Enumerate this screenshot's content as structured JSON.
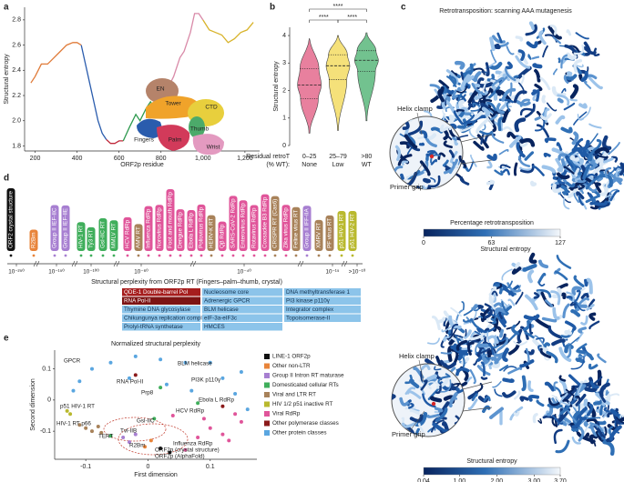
{
  "panel_letters": [
    "a",
    "b",
    "c",
    "d",
    "e"
  ],
  "chart_data": [
    {
      "type": "line",
      "xlabel": "ORF2p residue",
      "ylabel": "Structural entropy",
      "xlim": [
        150,
        1270
      ],
      "ylim": [
        1.76,
        2.9
      ],
      "xticks": [
        200,
        400,
        600,
        800,
        {
          "value": 1000,
          "label": "1,000"
        },
        {
          "value": 1200,
          "label": "1,200"
        }
      ],
      "yticks": [
        1.8,
        {
          "value": 2,
          "label": "2.0"
        },
        2.2,
        2.4,
        2.6,
        2.8
      ],
      "series": [
        {
          "color": "#e07b39",
          "x": [
            180,
            200,
            230,
            260,
            290,
            320,
            350,
            380,
            400,
            420
          ],
          "values": [
            2.3,
            2.35,
            2.45,
            2.45,
            2.5,
            2.55,
            2.6,
            2.62,
            2.62,
            2.6
          ]
        },
        {
          "color": "#2a5cad",
          "x": [
            420,
            440,
            460,
            480,
            500,
            520,
            540
          ],
          "values": [
            2.6,
            2.45,
            2.3,
            2.15,
            2.0,
            1.9,
            1.85
          ]
        },
        {
          "color": "#c0283a",
          "x": [
            540,
            560,
            580,
            600,
            620
          ],
          "values": [
            1.85,
            1.82,
            1.82,
            1.84,
            1.84
          ]
        },
        {
          "color": "#2e9a4f",
          "x": [
            620,
            650,
            680,
            700,
            730,
            750,
            770
          ],
          "values": [
            1.84,
            1.95,
            2.05,
            2.0,
            2.1,
            2.15,
            2.1
          ]
        },
        {
          "color": "#d98aa8",
          "x": [
            770,
            800,
            830,
            860,
            890,
            910,
            940,
            960,
            980,
            1000
          ],
          "values": [
            2.1,
            2.2,
            2.25,
            2.35,
            2.5,
            2.55,
            2.7,
            2.85,
            2.85,
            2.8
          ]
        },
        {
          "color": "#d8b32a",
          "x": [
            1000,
            1030,
            1060,
            1090,
            1120,
            1150,
            1180,
            1210,
            1240
          ],
          "values": [
            2.8,
            2.72,
            2.7,
            2.68,
            2.62,
            2.65,
            2.7,
            2.72,
            2.78
          ]
        }
      ],
      "schematic": [
        "EN",
        "Tower",
        "CTD",
        "Thumb",
        "Fingers",
        "Palm",
        "Wrist"
      ]
    },
    {
      "type": "violin",
      "ylabel": "Structural entropy",
      "xlabel_lines": [
        "Residual retroT",
        "(% WT):"
      ],
      "categories": [
        "0–25",
        "25–79",
        ">80"
      ],
      "category_notes": [
        "None",
        "Low",
        "WT"
      ],
      "ylim": [
        0,
        4.3
      ],
      "yticks": [
        0,
        1,
        2,
        3,
        4
      ],
      "violins": [
        {
          "color": "#e8809e",
          "min": 0.45,
          "q1": 1.7,
          "median": 2.2,
          "q3": 2.8,
          "max": 3.9
        },
        {
          "color": "#f5e17a",
          "min": 0.55,
          "q1": 2.4,
          "median": 2.9,
          "q3": 3.3,
          "max": 4.0
        },
        {
          "color": "#72c28f",
          "min": 0.9,
          "q1": 2.7,
          "median": 3.1,
          "q3": 3.45,
          "max": 4.1
        }
      ],
      "significance": [
        "****",
        "****",
        "****"
      ]
    },
    {
      "type": "scatter",
      "title": "Normalized structural perplexity",
      "xlabel": "First dimension",
      "ylabel": "Second dimension",
      "xlim": [
        -0.15,
        0.175
      ],
      "ylim": [
        -0.19,
        0.16
      ],
      "xticks": [
        -0.1,
        0,
        0.1
      ],
      "yticks": [
        -0.1,
        0,
        0.1
      ],
      "series": [
        {
          "name": "LINE-1 ORF2p",
          "color": "#111111",
          "x": [
            0.02,
            0.035
          ],
          "values": [
            -0.155,
            -0.168
          ]
        },
        {
          "name": "Other non-LTR",
          "color": "#e8843a",
          "x": [
            -0.005,
            0.005
          ],
          "values": [
            -0.15,
            -0.13
          ]
        },
        {
          "name": "Group II Intron RT maturase",
          "color": "#a77fd1",
          "x": [
            -0.04,
            -0.03,
            -0.02
          ],
          "values": [
            -0.12,
            -0.135,
            -0.11
          ]
        },
        {
          "name": "Domesticated cellular RTs",
          "color": "#3fae5b",
          "x": [
            0.02,
            -0.06,
            0.01,
            0.08
          ],
          "values": [
            0.04,
            -0.115,
            -0.06,
            -0.01
          ]
        },
        {
          "name": "Viral and LTR RT",
          "color": "#a8825a",
          "x": [
            -0.1,
            -0.09,
            -0.08,
            -0.075,
            -0.11
          ],
          "values": [
            -0.09,
            -0.1,
            -0.085,
            -0.105,
            -0.08
          ]
        },
        {
          "name": "HIV 1/2 p51 inactive RT",
          "color": "#b9b92e",
          "x": [
            -0.13,
            -0.125
          ],
          "values": [
            -0.035,
            -0.045
          ]
        },
        {
          "name": "Viral RdRp",
          "color": "#e0559a",
          "x": [
            0.09,
            0.14,
            0.06,
            0.1,
            0.12,
            0.08,
            0.15,
            0.04,
            0.13
          ],
          "values": [
            -0.06,
            -0.045,
            -0.16,
            -0.09,
            -0.11,
            -0.12,
            -0.07,
            -0.05,
            -0.13
          ]
        },
        {
          "name": "Other polymerase classes",
          "color": "#8b1a1a",
          "x": [
            -0.02,
            0.12
          ],
          "values": [
            0.08,
            -0.02
          ]
        },
        {
          "name": "Other protein classes",
          "color": "#5aa6e0",
          "x": [
            -0.09,
            -0.12,
            -0.06,
            -0.02,
            0.02,
            0.06,
            0.1,
            0.12,
            0.15,
            0.14,
            -0.11,
            0.07,
            0.16,
            0.03,
            -0.03
          ],
          "values": [
            0.1,
            0.03,
            0.12,
            0.14,
            0.13,
            0.12,
            0.12,
            0.07,
            0.09,
            0.02,
            0.06,
            0.03,
            -0.03,
            0.05,
            0.07
          ]
        }
      ],
      "annotations": [
        "GPCR",
        "RNA Pol-II",
        "BLM helicase",
        "PI3K p110γ",
        "Prp8",
        "p51 HIV-1 RT",
        "HIV-1 RT p66",
        "TERT",
        "Gsl-IIC",
        "Tvl-IIB",
        "R2Bm",
        "HCV RdRp",
        "Ebola L RdRp",
        "Influenza RdRp",
        "ORF2p (crystal structure)",
        "ORF2p (AlphaFold)"
      ]
    }
  ],
  "panel_c": {
    "top": {
      "title": "Retrotransposition: scanning AAA mutagenesis",
      "callouts": [
        "Helix clamp",
        "Primer grip"
      ],
      "colorbar": {
        "label": "Percentage retrotransposition",
        "clim": [
          0,
          127
        ],
        "ticks": [
          0,
          63,
          127
        ]
      }
    },
    "bottom": {
      "title": "Structural entropy",
      "callouts": [
        "Helix clamp",
        "Primer grip"
      ],
      "colorbar": {
        "label": "Structural entropy",
        "clim": [
          0.04,
          3.7
        ],
        "ticks": [
          0.04,
          {
            "value": 1,
            "label": "1.00"
          },
          {
            "value": 2,
            "label": "2.00"
          },
          {
            "value": 3,
            "label": "3.00"
          },
          {
            "value": 3.7,
            "label": "3.70"
          }
        ]
      }
    }
  },
  "panel_d": {
    "items": [
      {
        "label": "ORF2 crystal structure",
        "color": "#111111"
      },
      {
        "label": "R2Bm",
        "color": "#e8843a"
      },
      {
        "label": "Group II IEF-IIC",
        "color": "#a77fd1"
      },
      {
        "label": "Group II IEF-IIE",
        "color": "#a77fd1"
      },
      {
        "label": "HIV-1 RT",
        "color": "#3fae5b"
      },
      {
        "label": "Ty3 RT",
        "color": "#3fae5b"
      },
      {
        "label": "GsI-IIC RT",
        "color": "#3fae5b"
      },
      {
        "label": "MMLV RT",
        "color": "#3fae5b"
      },
      {
        "label": "HCV RdRp",
        "color": "#e0559a"
      },
      {
        "label": "AMV RT",
        "color": "#a8825a"
      },
      {
        "label": "Influenza RdRp",
        "color": "#e0559a"
      },
      {
        "label": "Norovirus RdRp",
        "color": "#e0559a"
      },
      {
        "label": "Foot and mouth RdRp",
        "color": "#e0559a"
      },
      {
        "label": "Dengue RdRp",
        "color": "#e0559a"
      },
      {
        "label": "Ebola L RdRp",
        "color": "#e0559a"
      },
      {
        "label": "Poliovirus RdRp",
        "color": "#e0559a"
      },
      {
        "label": "HERV-K RT",
        "color": "#a8825a"
      },
      {
        "label": "Qβ RdRp",
        "color": "#e0559a"
      },
      {
        "label": "SARS-CoV-2 RdRp",
        "color": "#e0559a"
      },
      {
        "label": "Enterovirus RdRp",
        "color": "#e0559a"
      },
      {
        "label": "Rotavirus RdRp",
        "color": "#e0559a"
      },
      {
        "label": "Coxsackie B3 RdRp",
        "color": "#e0559a"
      },
      {
        "label": "CRISPR RT (Cas6)",
        "color": "#a8825a"
      },
      {
        "label": "Zika virus RdRp",
        "color": "#e0559a"
      },
      {
        "label": "Feline virus RT",
        "color": "#a8825a"
      },
      {
        "label": "Group II IFF-IIA",
        "color": "#a77fd1"
      },
      {
        "label": "XMRV RT",
        "color": "#a8825a"
      },
      {
        "label": "PF virus RT",
        "color": "#a8825a"
      },
      {
        "label": "p51 HIV-1 RT",
        "color": "#b9b92e"
      },
      {
        "label": "p51 HIV-2 RT",
        "color": "#b9b92e"
      }
    ],
    "axis_ticks": [
      "10⁻²⁵⁰",
      "10⁻¹⁵⁰",
      "10⁻¹⁰⁰",
      "10⁻⁶⁰",
      "10⁻⁴⁰",
      "10⁻¹⁵",
      ">10⁻¹⁰"
    ],
    "axis_label": "Structural perplexity from ORF2p RT (Fingers–palm–thumb, crystal)",
    "legend": [
      {
        "label": "QDE-1 Double-barrel Pol",
        "color": "#a61e1e"
      },
      {
        "label": "RNA Pol-II",
        "color": "#7d1414"
      },
      {
        "label": "Thymine DNA glycosylase",
        "color": "#8cc4ea"
      },
      {
        "label": "Chikungunya replication complex",
        "color": "#8cc4ea"
      },
      {
        "label": "Prolyl-tRNA synthetase",
        "color": "#8cc4ea"
      },
      {
        "label": "Nucleosome core",
        "color": "#8cc4ea"
      },
      {
        "label": "Adrenergic GPCR",
        "color": "#8cc4ea"
      },
      {
        "label": "BLM helicase",
        "color": "#8cc4ea"
      },
      {
        "label": "eIF-3a-eIF3c",
        "color": "#8cc4ea"
      },
      {
        "label": "HMCES",
        "color": "#8cc4ea"
      },
      {
        "label": "DNA methyltransferase 1",
        "color": "#8cc4ea"
      },
      {
        "label": "PI3 kinase p110γ",
        "color": "#8cc4ea"
      },
      {
        "label": "Integrator complex",
        "color": "#8cc4ea"
      },
      {
        "label": "Topoisomerase-II",
        "color": "#8cc4ea"
      }
    ]
  }
}
